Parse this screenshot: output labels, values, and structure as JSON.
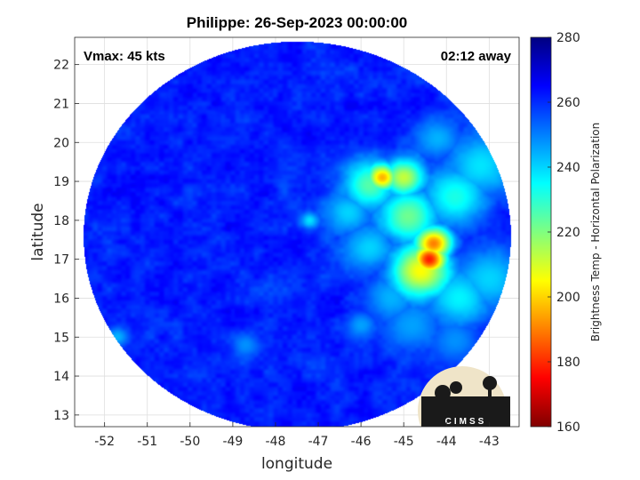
{
  "title": "Philippe: 26-Sep-2023 00:00:00",
  "annotations": {
    "vmax": "Vmax: 45 kts",
    "time_away": "02:12 away"
  },
  "logo": {
    "text": "CIMSS"
  },
  "chart_data": {
    "type": "heatmap",
    "title": "Philippe: 26-Sep-2023 00:00:00",
    "xlabel": "longitude",
    "ylabel": "latitude",
    "xlim": [
      -52.7,
      -42.3
    ],
    "ylim": [
      12.7,
      22.7
    ],
    "xticks": [
      -52,
      -51,
      -50,
      -49,
      -48,
      -47,
      -46,
      -45,
      -44,
      -43
    ],
    "yticks": [
      13,
      14,
      15,
      16,
      17,
      18,
      19,
      20,
      21,
      22
    ],
    "grid": true,
    "background_tb": 262,
    "swath": {
      "center_lon": -47.5,
      "center_lat": 17.6,
      "radius_deg": 5.0
    },
    "storm_center": {
      "lon": -47.2,
      "lat": 17.9
    },
    "colorbar": {
      "label": "Brightness Temp - Horizontal Polarization",
      "range": [
        160,
        280
      ],
      "ticks": [
        160,
        180,
        200,
        220,
        240,
        260,
        280
      ],
      "colormap": "jet"
    },
    "features": [
      {
        "lon": -44.4,
        "lat": 17.0,
        "tb": 178,
        "sigma": 0.28
      },
      {
        "lon": -44.3,
        "lat": 17.4,
        "tb": 190,
        "sigma": 0.3
      },
      {
        "lon": -44.6,
        "lat": 16.7,
        "tb": 205,
        "sigma": 0.5
      },
      {
        "lon": -45.5,
        "lat": 19.1,
        "tb": 196,
        "sigma": 0.25
      },
      {
        "lon": -45.0,
        "lat": 19.1,
        "tb": 212,
        "sigma": 0.35
      },
      {
        "lon": -45.8,
        "lat": 18.9,
        "tb": 225,
        "sigma": 0.45
      },
      {
        "lon": -44.9,
        "lat": 18.1,
        "tb": 222,
        "sigma": 0.5
      },
      {
        "lon": -43.8,
        "lat": 18.6,
        "tb": 232,
        "sigma": 0.55
      },
      {
        "lon": -43.2,
        "lat": 19.4,
        "tb": 238,
        "sigma": 0.6
      },
      {
        "lon": -43.7,
        "lat": 16.0,
        "tb": 236,
        "sigma": 0.55
      },
      {
        "lon": -43.0,
        "lat": 16.5,
        "tb": 240,
        "sigma": 0.6
      },
      {
        "lon": -45.8,
        "lat": 17.3,
        "tb": 240,
        "sigma": 0.45
      },
      {
        "lon": -46.3,
        "lat": 18.2,
        "tb": 240,
        "sigma": 0.4
      },
      {
        "lon": -47.2,
        "lat": 18.0,
        "tb": 238,
        "sigma": 0.15
      },
      {
        "lon": -44.2,
        "lat": 20.1,
        "tb": 244,
        "sigma": 0.4
      },
      {
        "lon": -45.3,
        "lat": 16.0,
        "tb": 244,
        "sigma": 0.45
      },
      {
        "lon": -44.8,
        "lat": 15.3,
        "tb": 246,
        "sigma": 0.5
      },
      {
        "lon": -43.8,
        "lat": 14.9,
        "tb": 248,
        "sigma": 0.45
      },
      {
        "lon": -51.7,
        "lat": 15.0,
        "tb": 244,
        "sigma": 0.2
      },
      {
        "lon": -46.0,
        "lat": 15.3,
        "tb": 246,
        "sigma": 0.25
      },
      {
        "lon": -48.7,
        "lat": 14.8,
        "tb": 248,
        "sigma": 0.25
      }
    ]
  }
}
